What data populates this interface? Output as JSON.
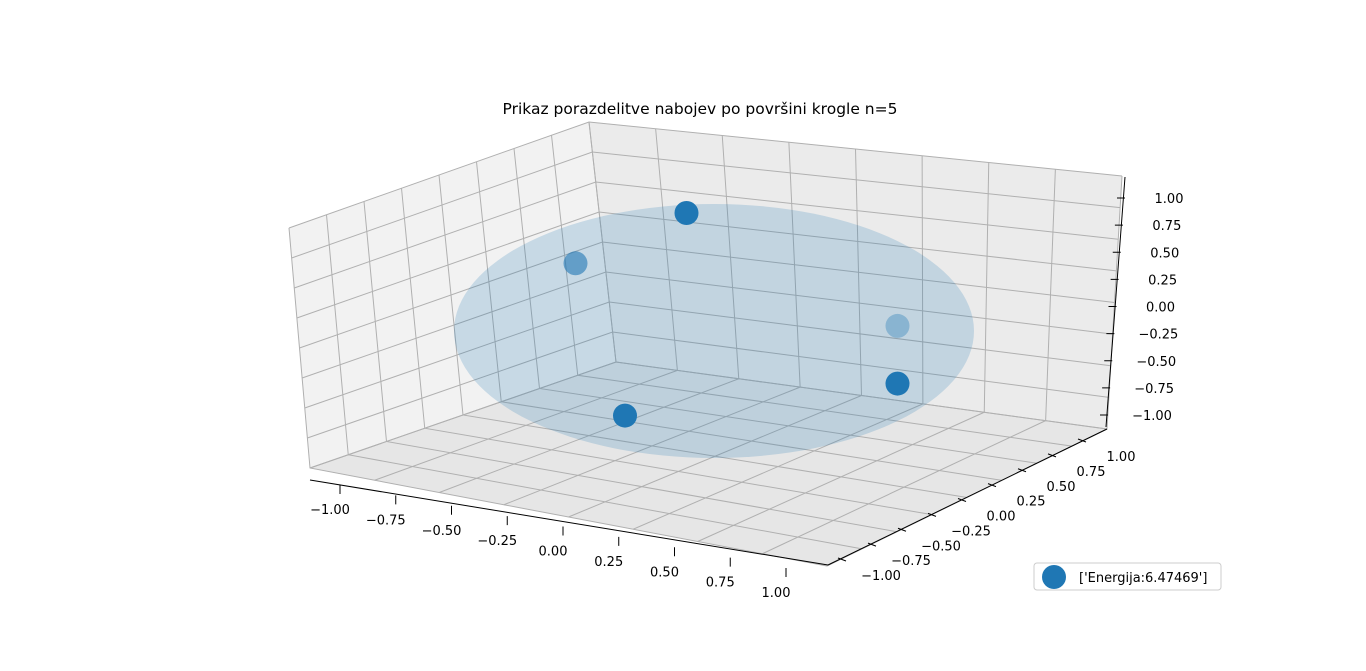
{
  "chart_data": {
    "type": "scatter",
    "title": "Prikaz porazdelitve nabojev po površini krogle n=5",
    "xlabel": "",
    "ylabel": "",
    "zlabel": "",
    "xlim": [
      -1.0,
      1.0
    ],
    "ylim": [
      -1.0,
      1.0
    ],
    "zlim": [
      -1.0,
      1.0
    ],
    "x_ticks": [
      "−1.00",
      "−0.75",
      "−0.50",
      "−0.25",
      "0.00",
      "0.25",
      "0.50",
      "0.75",
      "1.00"
    ],
    "y_ticks": [
      "−1.00",
      "−0.75",
      "−0.50",
      "−0.25",
      "0.00",
      "0.25",
      "0.50",
      "0.75",
      "1.00"
    ],
    "z_ticks": [
      "−1.00",
      "−0.75",
      "−0.50",
      "−0.25",
      "0.00",
      "0.25",
      "0.50",
      "0.75",
      "1.00"
    ],
    "grid": true,
    "sphere": {
      "radius": 1.0,
      "color": "#1f77b4",
      "alpha": 0.2
    },
    "points": [
      {
        "x": -0.15,
        "y": 0.05,
        "z": 0.98,
        "alpha": 1.0
      },
      {
        "x": -0.85,
        "y": 0.5,
        "z": 0.1,
        "alpha": 0.6
      },
      {
        "x": 0.55,
        "y": 0.85,
        "z": -0.1,
        "alpha": 0.35
      },
      {
        "x": 0.95,
        "y": -0.2,
        "z": -0.05,
        "alpha": 1.0
      },
      {
        "x": -0.1,
        "y": -0.85,
        "z": -0.45,
        "alpha": 1.0
      }
    ],
    "series": [
      {
        "name": "['Energija:6.47469']",
        "color": "#1f77b4"
      }
    ],
    "legend_position": "bottom-right"
  }
}
